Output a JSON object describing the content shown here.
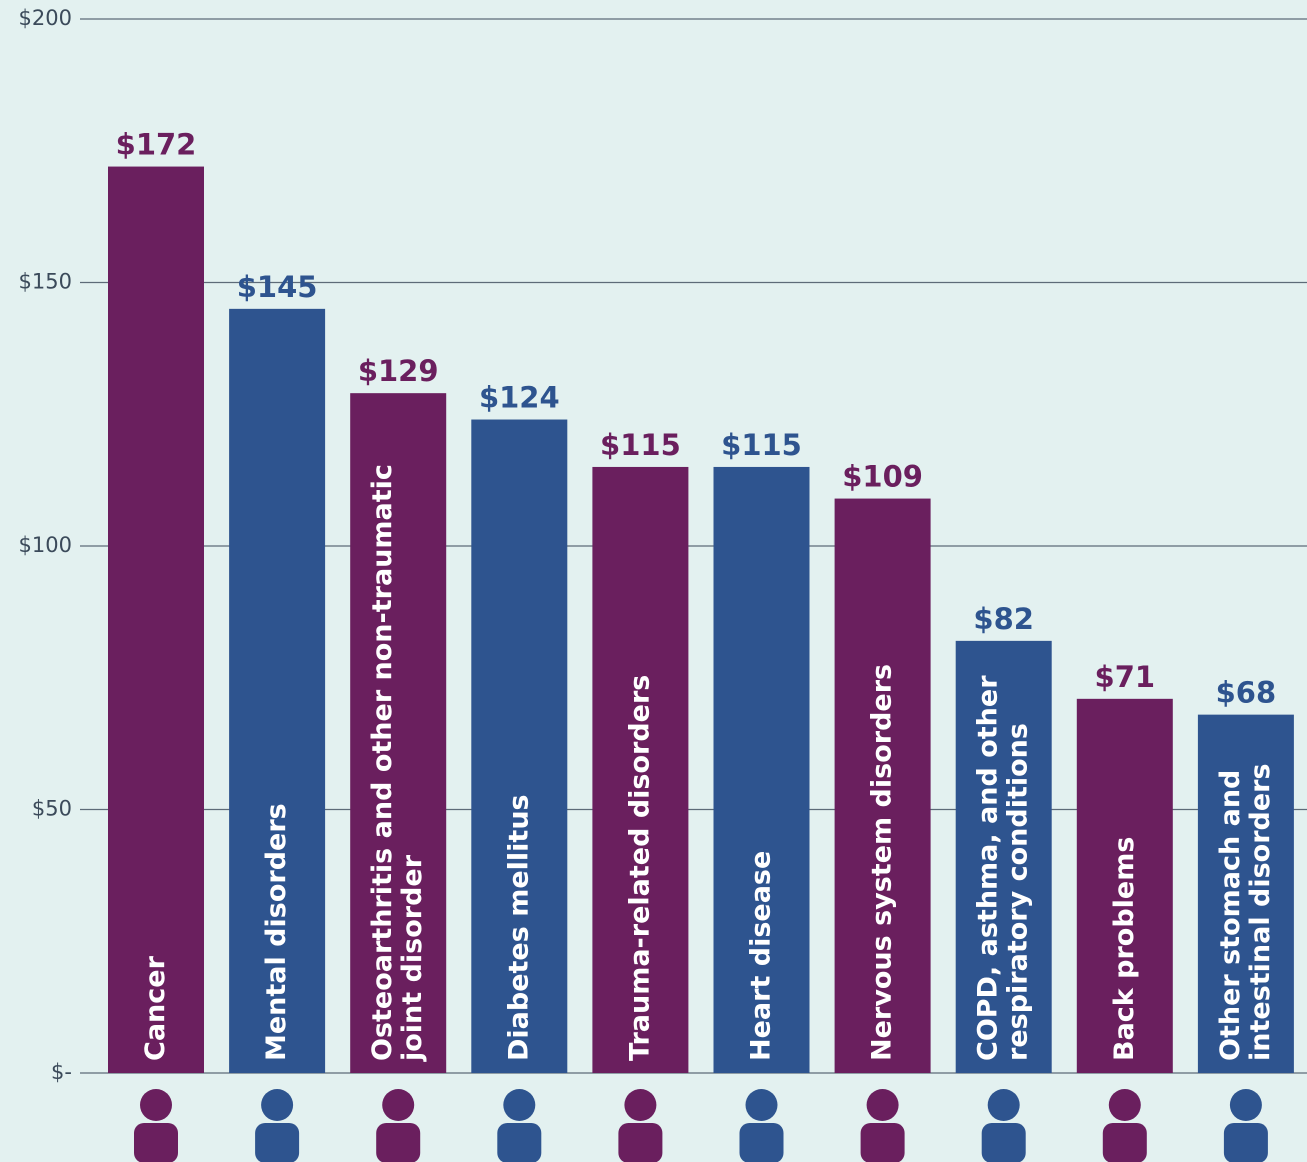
{
  "chart_data": {
    "type": "bar",
    "categories": [
      "Cancer",
      "Mental disorders",
      "Osteoarthritis and other non-traumatic joint disorder",
      "Diabetes mellitus",
      "Trauma-related disorders",
      "Heart disease",
      "Nervous system disorders",
      "COPD, asthma, and other respiratory conditions",
      "Back problems",
      "Other stomach and intestinal disorders"
    ],
    "values": [
      172,
      145,
      129,
      124,
      115,
      115,
      109,
      82,
      71,
      68
    ],
    "value_labels": [
      "$172",
      "$145",
      "$129",
      "$124",
      "$115",
      "$115",
      "$109",
      "$82",
      "$71",
      "$68"
    ],
    "colors": [
      "#6a1f5e",
      "#2e548f",
      "#6a1f5e",
      "#2e548f",
      "#6a1f5e",
      "#2e548f",
      "#6a1f5e",
      "#2e548f",
      "#6a1f5e",
      "#2e548f"
    ],
    "ylim": [
      0,
      200
    ],
    "yticks": [
      {
        "value": 0,
        "label": "$-"
      },
      {
        "value": 50,
        "label": "$50"
      },
      {
        "value": 100,
        "label": "$100"
      },
      {
        "value": 150,
        "label": "$150"
      },
      {
        "value": 200,
        "label": "$200"
      }
    ],
    "grid": true
  }
}
